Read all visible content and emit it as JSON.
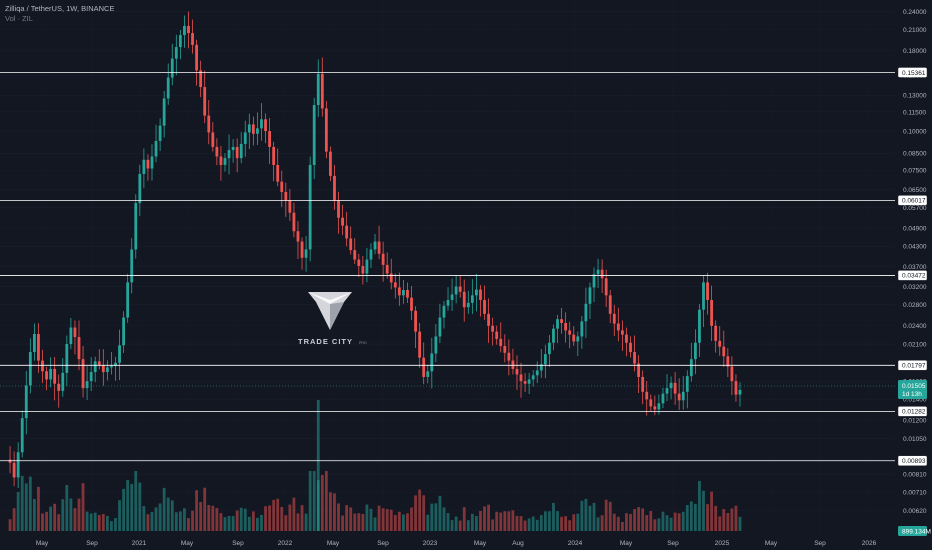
{
  "header": {
    "symbol": "Zilliqa / TetherUS, 1W, BINANCE",
    "volume_label": "Vol · ZIL"
  },
  "watermark": {
    "name": "TRADE CITY",
    "suffix": "PRO"
  },
  "colors": {
    "background": "#131722",
    "up": "#26a69a",
    "down": "#ef5350",
    "level_line": "#ffffff",
    "price_tag": "#26a69a"
  },
  "chart_data": {
    "type": "candlestick",
    "scale": "log",
    "ylim": [
      0.0057,
      0.25
    ],
    "y_ticks": [
      "0.24000",
      "0.21000",
      "0.18000",
      "0.15000",
      "0.13000",
      "0.11500",
      "0.10000",
      "0.08500",
      "0.07500",
      "0.06500",
      "0.05700",
      "0.04900",
      "0.04300",
      "0.03700",
      "0.03200",
      "0.02800",
      "0.02400",
      "0.02100",
      "0.01800",
      "0.01600",
      "0.01400",
      "0.01200",
      "0.01050",
      "0.00900",
      "0.00810",
      "0.00710",
      "0.00620"
    ],
    "x_ticks": [
      "May",
      "Sep",
      "2021",
      "May",
      "Sep",
      "2022",
      "May",
      "Sep",
      "2023",
      "May",
      "Aug",
      "2024",
      "May",
      "Sep",
      "2025",
      "May",
      "Sep",
      "2026"
    ],
    "support_resistance_levels": [
      "0.15361",
      "0.06017",
      "0.03472",
      "0.01797",
      "0.01282",
      "0.00893"
    ],
    "current_price": "0.01505",
    "countdown": "1d 13h",
    "volume_value": "899.134M",
    "price_path": [
      0.009,
      0.0088,
      0.0079,
      0.0095,
      0.0122,
      0.0155,
      0.0198,
      0.0226,
      0.0186,
      0.0172,
      0.0162,
      0.0175,
      0.0157,
      0.0149,
      0.017,
      0.021,
      0.0237,
      0.0221,
      0.0188,
      0.0152,
      0.016,
      0.0171,
      0.0185,
      0.018,
      0.0171,
      0.0177,
      0.0179,
      0.0183,
      0.0208,
      0.0255,
      0.033,
      0.042,
      0.059,
      0.073,
      0.081,
      0.076,
      0.083,
      0.093,
      0.104,
      0.127,
      0.148,
      0.17,
      0.185,
      0.202,
      0.216,
      0.205,
      0.188,
      0.156,
      0.138,
      0.112,
      0.099,
      0.089,
      0.083,
      0.078,
      0.082,
      0.087,
      0.089,
      0.082,
      0.091,
      0.099,
      0.105,
      0.098,
      0.102,
      0.109,
      0.1,
      0.089,
      0.078,
      0.069,
      0.064,
      0.06,
      0.055,
      0.048,
      0.0445,
      0.0395,
      0.042,
      0.078,
      0.121,
      0.152,
      0.118,
      0.086,
      0.072,
      0.06,
      0.053,
      0.05,
      0.0455,
      0.0418,
      0.039,
      0.0372,
      0.0352,
      0.039,
      0.042,
      0.0445,
      0.0407,
      0.0375,
      0.0352,
      0.033,
      0.0318,
      0.03,
      0.0312,
      0.0295,
      0.0268,
      0.023,
      0.019,
      0.0165,
      0.0172,
      0.0196,
      0.0222,
      0.0255,
      0.0278,
      0.029,
      0.0302,
      0.032,
      0.0308,
      0.0275,
      0.0284,
      0.03,
      0.0313,
      0.029,
      0.0262,
      0.024,
      0.023,
      0.0218,
      0.0207,
      0.0197,
      0.0186,
      0.0175,
      0.0168,
      0.016,
      0.0157,
      0.0162,
      0.0167,
      0.0173,
      0.0181,
      0.0195,
      0.0212,
      0.0235,
      0.0252,
      0.0245,
      0.0232,
      0.0225,
      0.0214,
      0.0222,
      0.0248,
      0.0282,
      0.0318,
      0.035,
      0.0362,
      0.034,
      0.03,
      0.0262,
      0.0244,
      0.0232,
      0.0225,
      0.0212,
      0.0198,
      0.0182,
      0.0165,
      0.0148,
      0.014,
      0.0133,
      0.013,
      0.0136,
      0.0146,
      0.0152,
      0.0158,
      0.0146,
      0.0139,
      0.0148,
      0.0166,
      0.0188,
      0.0212,
      0.027,
      0.033,
      0.029,
      0.024,
      0.0215,
      0.0206,
      0.0192,
      0.0178,
      0.016,
      0.0145,
      0.015
    ]
  }
}
